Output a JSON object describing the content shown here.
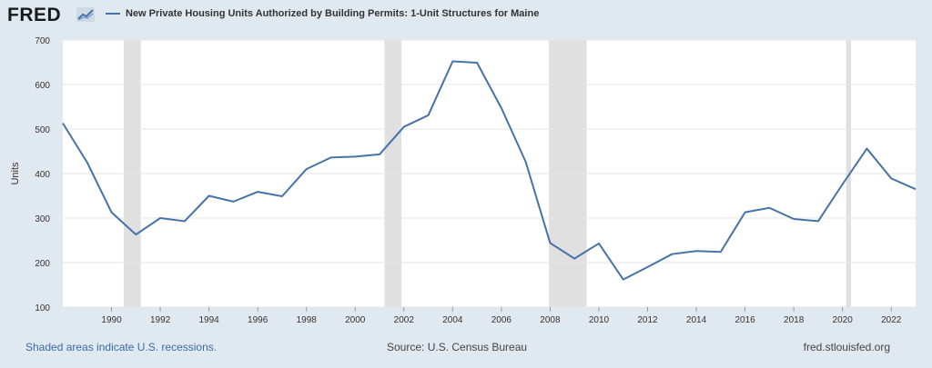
{
  "header": {
    "logo_text": "FRED",
    "logo_mark": "chart-icon",
    "legend_label": "New Private Housing Units Authorized by Building Permits: 1-Unit Structures for Maine"
  },
  "footer": {
    "recession_note": "Shaded areas indicate U.S. recessions.",
    "source": "Source: U.S. Census Bureau",
    "site": "fred.stlouisfed.org"
  },
  "colors": {
    "series": "#4572a7",
    "recession": "#e0e0e0",
    "background": "#e1e9f0"
  },
  "chart_data": {
    "type": "line",
    "title": "",
    "xlabel": "",
    "ylabel": "Units",
    "ylim": [
      100,
      700
    ],
    "xlim": [
      1988,
      2023
    ],
    "yticks": [
      100,
      200,
      300,
      400,
      500,
      600,
      700
    ],
    "xticks": [
      1990,
      1992,
      1994,
      1996,
      1998,
      2000,
      2002,
      2004,
      2006,
      2008,
      2010,
      2012,
      2014,
      2016,
      2018,
      2020,
      2022
    ],
    "grid": true,
    "series": [
      {
        "name": "New Private Housing Units Authorized by Building Permits: 1-Unit Structures for Maine",
        "x": [
          1988,
          1989,
          1990,
          1991,
          1992,
          1993,
          1994,
          1995,
          1996,
          1997,
          1998,
          1999,
          2000,
          2001,
          2002,
          2003,
          2004,
          2005,
          2006,
          2007,
          2008,
          2009,
          2010,
          2011,
          2012,
          2013,
          2014,
          2015,
          2016,
          2017,
          2018,
          2019,
          2020,
          2021,
          2022,
          2023
        ],
        "values": [
          513,
          425,
          313,
          263,
          300,
          293,
          350,
          337,
          359,
          349,
          410,
          436,
          438,
          443,
          505,
          531,
          652,
          649,
          547,
          426,
          244,
          209,
          243,
          162,
          190,
          219,
          226,
          224,
          313,
          323,
          298,
          293,
          376,
          456,
          389,
          365
        ]
      }
    ],
    "recessions": [
      [
        1990.5,
        1991.2
      ],
      [
        2001.2,
        2001.9
      ],
      [
        2007.95,
        2009.5
      ],
      [
        2020.15,
        2020.35
      ]
    ]
  }
}
